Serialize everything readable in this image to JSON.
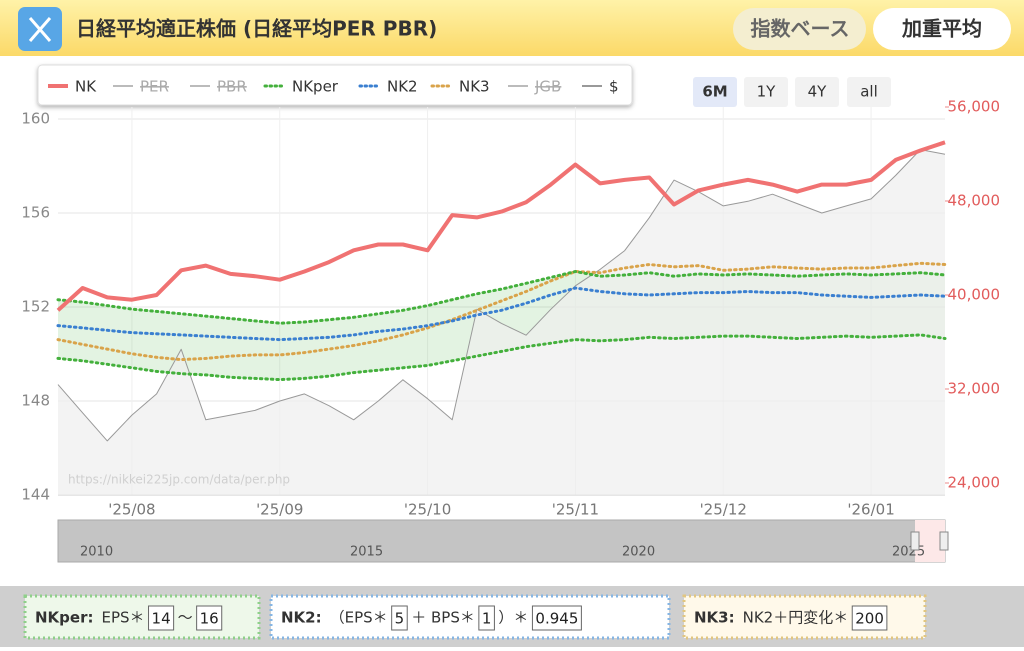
{
  "header": {
    "title": "日経平均適正株価 (日経平均PER PBR)",
    "buttons": [
      "指数ベース",
      "加重平均"
    ]
  },
  "controls": {
    "ranges": [
      "6M",
      "1Y",
      "4Y",
      "all"
    ],
    "selected": 0
  },
  "chart_data": {
    "type": "line",
    "source": "https://nikkei225jp.com/data/per.php",
    "categories": [
      null,
      null,
      null,
      "'25/08",
      null,
      null,
      null,
      null,
      null,
      "'25/09",
      null,
      null,
      null,
      null,
      null,
      "'25/10",
      null,
      null,
      null,
      null,
      null,
      "'25/11",
      null,
      null,
      null,
      null,
      null,
      "'25/12",
      null,
      null,
      null,
      null,
      null,
      "'26/01",
      null,
      null,
      null
    ],
    "ylim": [
      144,
      160
    ],
    "yticks": [
      144,
      148,
      152,
      156,
      160
    ],
    "y2lim": [
      24000,
      56000
    ],
    "y2ticks": [
      {
        "value": 24000,
        "label": "24,000"
      },
      {
        "value": 32000,
        "label": "32,000"
      },
      {
        "value": 40000,
        "label": "40,000"
      },
      {
        "value": 48000,
        "label": "48,000"
      },
      {
        "value": 56000,
        "label": "56,000"
      }
    ],
    "grid": true,
    "series": [
      {
        "name": "NK",
        "color": "#f07272",
        "axis": "y2",
        "dash": "solid",
        "visible": true,
        "values": [
          38700,
          40600,
          39800,
          39600,
          40000,
          42100,
          42500,
          41800,
          41600,
          41300,
          42000,
          42800,
          43800,
          44300,
          44300,
          43800,
          46800,
          46600,
          47100,
          47900,
          49400,
          51100,
          49500,
          49800,
          50000,
          47700,
          48900,
          49400,
          49800,
          49400,
          48800,
          49400,
          49400,
          49800,
          51500,
          52300,
          53000
        ]
      },
      {
        "name": "PER",
        "color": "#bbbbbb",
        "visible": false
      },
      {
        "name": "PBR",
        "color": "#bbbbbb",
        "visible": false
      },
      {
        "name": "NKper",
        "color": "#44b03c",
        "axis": "y2",
        "dash": "dotted",
        "visible": true,
        "high": [
          39600,
          39400,
          39100,
          38800,
          38600,
          38400,
          38200,
          38000,
          37800,
          37600,
          37700,
          37900,
          38100,
          38400,
          38700,
          39100,
          39600,
          40100,
          40500,
          41000,
          41500,
          42000,
          41600,
          41700,
          41900,
          41600,
          41800,
          41700,
          41800,
          41700,
          41600,
          41700,
          41800,
          41700,
          41800,
          41900,
          41700
        ],
        "low": [
          34600,
          34400,
          34100,
          33800,
          33500,
          33300,
          33200,
          33000,
          32900,
          32800,
          32900,
          33100,
          33400,
          33600,
          33800,
          34000,
          34400,
          34800,
          35200,
          35600,
          35900,
          36200,
          36100,
          36200,
          36400,
          36300,
          36400,
          36500,
          36500,
          36400,
          36300,
          36400,
          36500,
          36400,
          36500,
          36600,
          36300
        ]
      },
      {
        "name": "NK2",
        "color": "#3a7fd0",
        "axis": "y2",
        "dash": "dotted",
        "visible": true,
        "values": [
          37400,
          37200,
          37000,
          36800,
          36700,
          36600,
          36500,
          36400,
          36300,
          36200,
          36300,
          36400,
          36600,
          36900,
          37100,
          37400,
          37800,
          38300,
          38700,
          39300,
          40000,
          40600,
          40300,
          40100,
          40000,
          40100,
          40200,
          40200,
          40300,
          40200,
          40200,
          40000,
          39900,
          39800,
          39900,
          40000,
          39900
        ]
      },
      {
        "name": "NK3",
        "color": "#d9a34a",
        "axis": "y2",
        "dash": "dotted",
        "visible": true,
        "values": [
          36200,
          35800,
          35400,
          35000,
          34700,
          34500,
          34600,
          34800,
          34900,
          34900,
          35100,
          35400,
          35700,
          36100,
          36600,
          37200,
          37900,
          38700,
          39500,
          40300,
          41200,
          42000,
          41900,
          42300,
          42600,
          42400,
          42500,
          42100,
          42200,
          42400,
          42300,
          42200,
          42300,
          42300,
          42500,
          42700,
          42600
        ]
      },
      {
        "name": "JGB",
        "color": "#bbbbbb",
        "visible": false
      },
      {
        "name": "$",
        "color": "#999999",
        "axis": "y",
        "dash": "solid",
        "area": true,
        "visible": true,
        "values": [
          148.7,
          147.5,
          146.3,
          147.4,
          148.3,
          150.2,
          147.2,
          147.4,
          147.6,
          148.0,
          148.3,
          147.8,
          147.2,
          148.0,
          148.9,
          148.1,
          147.2,
          151.9,
          151.3,
          150.8,
          151.9,
          152.9,
          153.6,
          154.4,
          155.8,
          157.4,
          156.9,
          156.3,
          156.5,
          156.8,
          156.4,
          156.0,
          156.3,
          156.6,
          157.6,
          158.7,
          158.5
        ]
      }
    ],
    "navigator": [
      "2010",
      "2015",
      "2020",
      "2025"
    ]
  },
  "footer": [
    {
      "label": "NKper:",
      "content": [
        "EPS＊",
        14,
        "〜",
        16
      ]
    },
    {
      "label": "NK2:",
      "content": [
        "（EPS＊",
        5,
        "＋ BPS＊",
        1,
        "）＊",
        0.945
      ]
    },
    {
      "label": "NK3:",
      "content": [
        "NK2＋円変化＊",
        200
      ]
    }
  ]
}
